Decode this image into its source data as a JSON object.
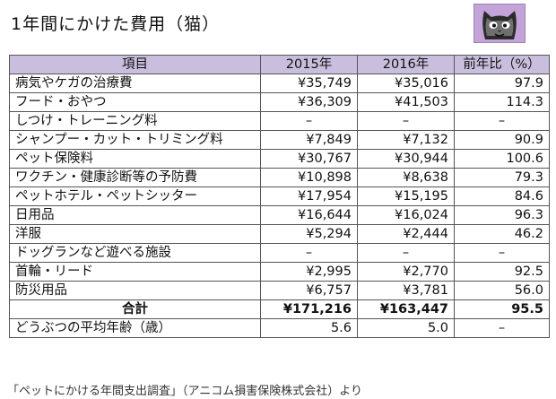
{
  "title": "1年間にかけた費用（猫）",
  "icon": "cat-face-icon",
  "colors": {
    "header_bg": "#c9bedd",
    "icon_bg": "#c3a3d8"
  },
  "table": {
    "headers": [
      "項目",
      "2015年",
      "2016年",
      "前年比（%）"
    ],
    "rows": [
      {
        "item": "病気やケガの治療費",
        "y2015": "¥35,749",
        "y2016": "¥35,016",
        "ratio": "97.9"
      },
      {
        "item": "フード・おやつ",
        "y2015": "¥36,309",
        "y2016": "¥41,503",
        "ratio": "114.3"
      },
      {
        "item": "しつけ・トレーニング料",
        "y2015": "–",
        "y2016": "–",
        "ratio": "–"
      },
      {
        "item": "シャンプー・カット・トリミング料",
        "y2015": "¥7,849",
        "y2016": "¥7,132",
        "ratio": "90.9"
      },
      {
        "item": "ペット保険料",
        "y2015": "¥30,767",
        "y2016": "¥30,944",
        "ratio": "100.6"
      },
      {
        "item": "ワクチン・健康診断等の予防費",
        "y2015": "¥10,898",
        "y2016": "¥8,638",
        "ratio": "79.3"
      },
      {
        "item": "ペットホテル・ペットシッター",
        "y2015": "¥17,954",
        "y2016": "¥15,195",
        "ratio": "84.6"
      },
      {
        "item": "日用品",
        "y2015": "¥16,644",
        "y2016": "¥16,024",
        "ratio": "96.3"
      },
      {
        "item": "洋服",
        "y2015": "¥5,294",
        "y2016": "¥2,444",
        "ratio": "46.2"
      },
      {
        "item": "ドッグランなど遊べる施設",
        "y2015": "–",
        "y2016": "–",
        "ratio": "–"
      },
      {
        "item": "首輪・リード",
        "y2015": "¥2,995",
        "y2016": "¥2,770",
        "ratio": "92.5"
      },
      {
        "item": "防災用品",
        "y2015": "¥6,757",
        "y2016": "¥3,781",
        "ratio": "56.0"
      }
    ],
    "total": {
      "item": "合計",
      "y2015": "¥171,216",
      "y2016": "¥163,447",
      "ratio": "95.5"
    },
    "age": {
      "item": "どうぶつの平均年齢（歳）",
      "y2015": "5.6",
      "y2016": "5.0",
      "ratio": "–"
    }
  },
  "source": "「ペットにかける年間支出調査」（アニコム損害保険株式会社）より"
}
